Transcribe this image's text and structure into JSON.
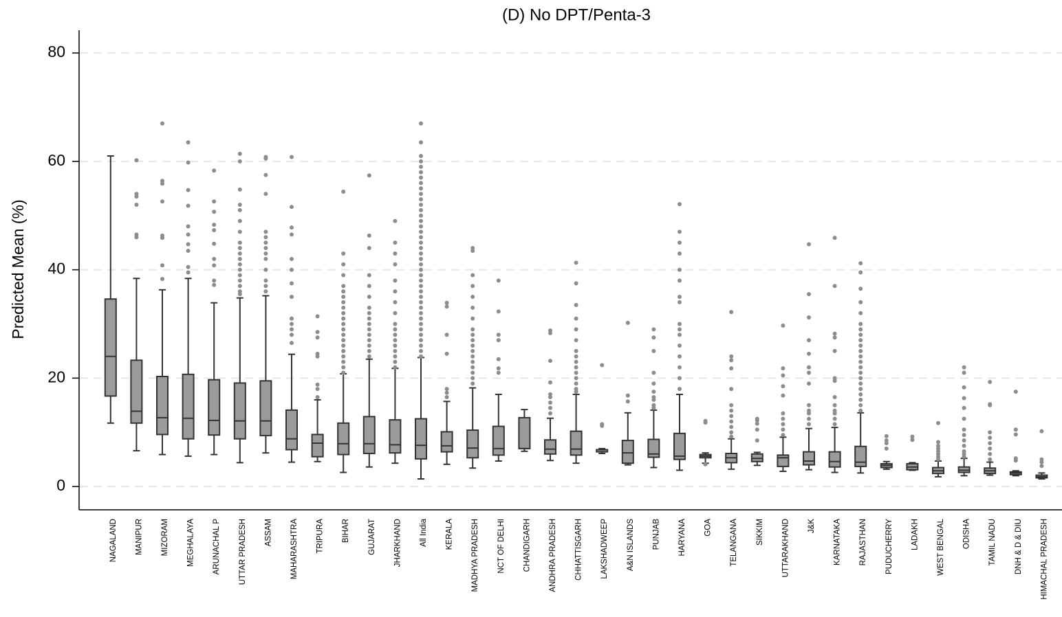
{
  "chart_data": {
    "type": "box",
    "title": "(D) No DPT/Penta-3",
    "y_label": "Predicted Mean (%)",
    "ylim": [
      -4.3,
      84.2
    ],
    "yticks": [
      0,
      20,
      40,
      60,
      80
    ],
    "grid": true,
    "box_color": "#9b9b9b",
    "outlier_color": "#8c8c8c",
    "categories": [
      "NAGALAND",
      "MANIPUR",
      "MIZORAM",
      "MEGHALAYA",
      "ARUNACHAL P",
      "UTTAR PRADESH",
      "ASSAM",
      "MAHARASHTRA",
      "TRIPURA",
      "BIHAR",
      "GUJARAT",
      "JHARKHAND",
      "All India",
      "KERALA",
      "MADHYA PRADESH",
      "NCT OF DELHI",
      "CHANDIGARH",
      "ANDHRA PRADESH",
      "CHHATTISGARH",
      "LAKSHADWEEP",
      "A&N ISLANDS",
      "PUNJAB",
      "HARYANA",
      "GOA",
      "TELANGANA",
      "SIKKIM",
      "UTTARAKHAND",
      "J&K",
      "KARNATAKA",
      "RAJASTHAN",
      "PUDUCHERRY",
      "LADAKH",
      "WEST BENGAL",
      "ODISHA",
      "TAMIL NADU",
      "DNH & D & DIU",
      "HIMACHAL PRADESH"
    ],
    "whisker_low": [
      11.7,
      6.6,
      5.9,
      5.6,
      5.9,
      4.4,
      6.2,
      4.5,
      4.6,
      2.6,
      3.6,
      4.3,
      1.4,
      4.1,
      3.4,
      4.7,
      6.5,
      4.8,
      4.3,
      6.1,
      4,
      3.5,
      3,
      4.3,
      3.2,
      3.9,
      2.8,
      3.1,
      2.6,
      2.5,
      3.2,
      3,
      1.8,
      2,
      2.1,
      2,
      1.4
    ],
    "q1": [
      16.7,
      11.7,
      9.6,
      8.8,
      9.5,
      8.8,
      9.4,
      6.8,
      5.5,
      5.9,
      6.1,
      6.2,
      5.1,
      6.4,
      5.3,
      5.8,
      7,
      6,
      5.8,
      6.4,
      4.3,
      5.4,
      5,
      5.3,
      4.4,
      4.6,
      3.7,
      4,
      3.6,
      3.7,
      3.5,
      3.1,
      2.4,
      2.6,
      2.4,
      2.2,
      1.6
    ],
    "median": [
      24,
      13.9,
      12.7,
      12.6,
      12.2,
      12.1,
      12.1,
      8.8,
      8,
      7.9,
      7.9,
      7.7,
      7.6,
      7.5,
      7.1,
      7,
      7,
      6.9,
      6.9,
      6.8,
      6.2,
      6,
      5.6,
      5.6,
      5.3,
      5.2,
      5.3,
      4.7,
      4.6,
      4.5,
      3.9,
      3.6,
      2.9,
      3,
      2.9,
      2.5,
      1.8
    ],
    "q3": [
      34.6,
      23.3,
      20.3,
      20.7,
      19.7,
      19.1,
      19.5,
      14.1,
      9.6,
      11.7,
      12.9,
      12.3,
      12.5,
      10.1,
      10.4,
      11.1,
      12.7,
      8.6,
      10.2,
      6.8,
      8.5,
      8.7,
      9.8,
      5.9,
      6.1,
      6,
      5.8,
      6.4,
      6.4,
      7.4,
      4.2,
      4.2,
      3.5,
      3.6,
      3.4,
      2.7,
      2.1
    ],
    "whisker_high": [
      61,
      38.4,
      36.3,
      38.4,
      33.9,
      34.8,
      35.2,
      24.4,
      16,
      20.8,
      23.5,
      21.8,
      23.8,
      15.7,
      18.2,
      17,
      14.2,
      12.6,
      17,
      7,
      13.6,
      14.1,
      17,
      6.2,
      8.8,
      6.3,
      9.1,
      10.7,
      10.9,
      13.6,
      4.6,
      4.4,
      4.7,
      5.2,
      4.5,
      2.9,
      2.5
    ],
    "outliers": [
      [],
      [
        46,
        46.5,
        52,
        53.5,
        54,
        60.2
      ],
      [
        38.3,
        40.8,
        45.9,
        46.3,
        52.6,
        55.9,
        56.4,
        67
      ],
      [
        39.5,
        40.5,
        43.5,
        44.7,
        46.5,
        48,
        51.8,
        54.7,
        59.8,
        63.5
      ],
      [
        37.2,
        38,
        40.8,
        42,
        44.8,
        47.3,
        48.3,
        50.7,
        52.6,
        58.3
      ],
      [
        35.5,
        36,
        37,
        38,
        39,
        40,
        41,
        42,
        43,
        44,
        45,
        47,
        49,
        51,
        52,
        54.8,
        60,
        61.4
      ],
      [
        36,
        37,
        38,
        40,
        42,
        43,
        44,
        45,
        46,
        47,
        54,
        57.5,
        60.5,
        60.8
      ],
      [
        26.5,
        28,
        29,
        30,
        31,
        35,
        37.5,
        40,
        42,
        46.5,
        47.8,
        51.6,
        60.8
      ],
      [
        16.5,
        18,
        18.8,
        24,
        24.5,
        27.5,
        28.5,
        31.4
      ],
      [
        21,
        22,
        23,
        24,
        25,
        26,
        27,
        28,
        29,
        30,
        31,
        32,
        33,
        34,
        35,
        36,
        37,
        39,
        41,
        43,
        54.4
      ],
      [
        24,
        25,
        26,
        27,
        28,
        29,
        30,
        31,
        32,
        33,
        35,
        37,
        39,
        44,
        46.3,
        57.4
      ],
      [
        22,
        23,
        24,
        25,
        26,
        27,
        28,
        29,
        30,
        32,
        34,
        36,
        38,
        41,
        43,
        45,
        49
      ],
      [
        24,
        25,
        26,
        27,
        28,
        29,
        30,
        31,
        32,
        33,
        34,
        35,
        36,
        37,
        38,
        39,
        40,
        41,
        42,
        43,
        44,
        45,
        46,
        47,
        48,
        49,
        50,
        51,
        52,
        53,
        54,
        55,
        56,
        57,
        58,
        59,
        60,
        61,
        63.5,
        67
      ],
      [
        16.5,
        17.3,
        18,
        24.5,
        28,
        33.2,
        33.9
      ],
      [
        19,
        20,
        21,
        22,
        23,
        24,
        25,
        26,
        27,
        28,
        29,
        31,
        33,
        35,
        37,
        39,
        43.5,
        44
      ],
      [
        21,
        21.8,
        23.5,
        27,
        28,
        32.3,
        38
      ],
      [],
      [
        13.5,
        14.5,
        15.5,
        16.5,
        17,
        19.2,
        23.2,
        28.3,
        28.8
      ],
      [
        17.5,
        18,
        19,
        20,
        21,
        22,
        23,
        24,
        25,
        27,
        29,
        31,
        33.5,
        37.5,
        41.3
      ],
      [
        11.2,
        11.5,
        22.4
      ],
      [
        15.7,
        16.8,
        30.2
      ],
      [
        14.5,
        15,
        16,
        16.5,
        17.5,
        19,
        21,
        25,
        27.5,
        29
      ],
      [
        18,
        20,
        22,
        24,
        26,
        28,
        29,
        30,
        34,
        35,
        38,
        40,
        43,
        45,
        47,
        52.1
      ],
      [
        4.1,
        11.8,
        12.1
      ],
      [
        9.2,
        10,
        11,
        12,
        13,
        14,
        15,
        18,
        21.8,
        23.3,
        24,
        32.2
      ],
      [
        8.5,
        10.5,
        11.6,
        12.2,
        12.5
      ],
      [
        9.5,
        10.5,
        11.5,
        12.5,
        13.5,
        16.8,
        18.5,
        20.5,
        21.8,
        29.7
      ],
      [
        11.5,
        12.5,
        13.5,
        14,
        15,
        19,
        21,
        22,
        24.5,
        27,
        31.2,
        35.5,
        44.7
      ],
      [
        11.5,
        12.5,
        13.5,
        14,
        15,
        16.5,
        19.5,
        20,
        25,
        27.5,
        28.2,
        37,
        45.9
      ],
      [
        14,
        15,
        16,
        17,
        18,
        19,
        20,
        21,
        22,
        23,
        24,
        25,
        26,
        27,
        28,
        29,
        30,
        32,
        34,
        36.5,
        39.5,
        41.2
      ],
      [
        7,
        8,
        8.5,
        9.3
      ],
      [
        8.6,
        9.2
      ],
      [
        5,
        5.5,
        6,
        6.5,
        7,
        7.5,
        8.2,
        11.7
      ],
      [
        5.5,
        6,
        6.5,
        7.5,
        8.5,
        9.5,
        10.5,
        12.5,
        14.5,
        16.3,
        18.3,
        21,
        22
      ],
      [
        5,
        6,
        7,
        8,
        9,
        10,
        15,
        15.2,
        19.3
      ],
      [
        4.8,
        5.2,
        9.6,
        10.5,
        17.5
      ],
      [
        3.8,
        4.5,
        5,
        10.2
      ]
    ]
  }
}
